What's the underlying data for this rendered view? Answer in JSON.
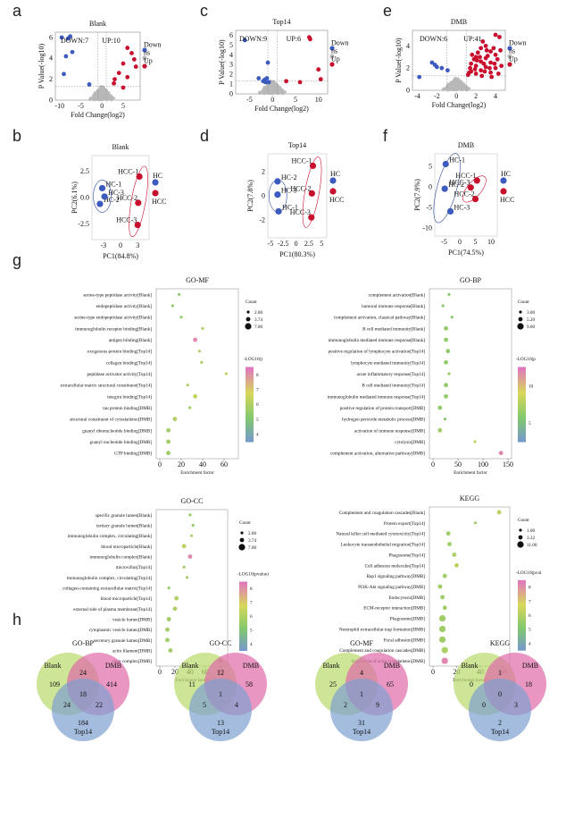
{
  "panels": {
    "a": "a",
    "b": "b",
    "c": "c",
    "d": "d",
    "e": "e",
    "f": "f",
    "g": "g",
    "h": "h"
  },
  "volcano": [
    {
      "title": "Blank",
      "down": "DOWN:7",
      "up": "UP:10",
      "xlabel": "Fold Change(log2)",
      "ylabel": "P Value(-log10)",
      "xticks": [
        "-10",
        "-5",
        "0",
        "5"
      ],
      "yticks": [
        "0",
        "2",
        "4",
        "6"
      ],
      "legend": [
        "Down",
        "ns",
        "Up"
      ]
    },
    {
      "title": "Top14",
      "down": "DOWN:9",
      "up": "UP:6",
      "xlabel": "Fold Change(log2)",
      "ylabel": "P Value(-log10)",
      "xticks": [
        "-5",
        "0",
        "5",
        "10"
      ],
      "yticks": [
        "0",
        "1",
        "2",
        "3",
        "4",
        "5",
        "6"
      ],
      "legend": [
        "Down",
        "ns",
        "Up"
      ]
    },
    {
      "title": "DMB",
      "down": "DOWN:6",
      "up": "UP:41",
      "xlabel": "Fold Change(log2)",
      "ylabel": "P Value(-log10)",
      "xticks": [
        "-4",
        "-2",
        "0",
        "2",
        "4"
      ],
      "yticks": [
        "0",
        "2",
        "4"
      ],
      "legend": [
        "Down",
        "ns",
        "Up"
      ]
    }
  ],
  "pca": [
    {
      "title": "Blank",
      "xlabel": "PC1(84.8%)",
      "ylabel": "PC2(6.1%)",
      "xticks": [
        "-3",
        "0",
        "3"
      ],
      "yticks": [
        "-2.5",
        "0.0",
        "2.5"
      ],
      "legend": [
        "HC",
        "HCC"
      ],
      "hc": [
        {
          "l": "HC-1",
          "x": -3.2,
          "y": 0.9
        },
        {
          "l": "HC-2",
          "x": -3.6,
          "y": -0.6
        },
        {
          "l": "HC-3",
          "x": -2.8,
          "y": 0.1
        }
      ],
      "hcc": [
        {
          "l": "HCC-1",
          "x": 3.3,
          "y": 2.0
        },
        {
          "l": "HCC-2",
          "x": 3.1,
          "y": -0.5
        },
        {
          "l": "HCC-3",
          "x": 3.0,
          "y": -2.6
        }
      ]
    },
    {
      "title": "Top14",
      "xlabel": "PC1(80.3%)",
      "ylabel": "PC2(7.8%)",
      "xticks": [
        "-5",
        "-2.5",
        "0",
        "2.5",
        "5"
      ],
      "yticks": [
        "-2",
        "0",
        "2"
      ],
      "legend": [
        "HC",
        "HCC"
      ],
      "hc": [
        {
          "l": "HC-2",
          "x": -3.6,
          "y": 1.2
        },
        {
          "l": "HC-3",
          "x": -3.6,
          "y": 0.1
        },
        {
          "l": "HC-1",
          "x": -3.4,
          "y": -1.3
        }
      ],
      "hcc": [
        {
          "l": "HCC-1",
          "x": 3.3,
          "y": 2.5
        },
        {
          "l": "HCC-2",
          "x": 3.1,
          "y": 0.2
        },
        {
          "l": "HCC-3",
          "x": 3.0,
          "y": -1.8
        }
      ]
    },
    {
      "title": "DMB",
      "xlabel": "PC1(74.5%)",
      "ylabel": "PC2(7.9%)",
      "xticks": [
        "-5",
        "0",
        "5",
        "10"
      ],
      "yticks": [
        "-10",
        "-5",
        "0",
        "5"
      ],
      "legend": [
        "HC",
        "HCC"
      ],
      "hc": [
        {
          "l": "HC-1",
          "x": -4.5,
          "y": 5.5
        },
        {
          "l": "HC-2",
          "x": -4.8,
          "y": -0.5
        },
        {
          "l": "HC-3",
          "x": -3.0,
          "y": -6
        }
      ],
      "hcc": [
        {
          "l": "HCC-1",
          "x": 5.5,
          "y": 1.5
        },
        {
          "l": "HCC-3",
          "x": 3.5,
          "y": -0.2
        },
        {
          "l": "HCC-2",
          "x": 5,
          "y": -3
        }
      ]
    }
  ],
  "bubbles": [
    {
      "title": "GO-MF",
      "xlabel": "Enrichment factor",
      "xticks": [
        "0",
        "20",
        "40",
        "60"
      ],
      "xmax": 70,
      "sizeTitle": "Count",
      "sizes": [
        "2.00",
        "3.74",
        "7.00"
      ],
      "colorTitle": "-LOG10()",
      "cticks": [
        "4",
        "5",
        "6",
        "7",
        "8"
      ],
      "terms": [
        {
          "t": "serine-type peptidase activity[Blank]",
          "g": "k",
          "x": 18,
          "c": 0.4,
          "s": 1
        },
        {
          "t": "endopeptidase activity[Blank]",
          "g": "k",
          "x": 12,
          "c": 0.4,
          "s": 1
        },
        {
          "t": "serine-type endopeptidase activity[Blank]",
          "g": "k",
          "x": 20,
          "c": 0.4,
          "s": 1
        },
        {
          "t": "immunoglobulin receptor binding[Blank]",
          "g": "k",
          "x": 40,
          "c": 0.5,
          "s": 1
        },
        {
          "t": "antigen binding[Blank]",
          "g": "k",
          "x": 33,
          "c": 0.95,
          "s": 2
        },
        {
          "t": "exogenous protein binding[Top14]",
          "g": "r",
          "x": 37,
          "c": 0.5,
          "s": 1
        },
        {
          "t": "collagen binding[Top14]",
          "g": "r",
          "x": 39,
          "c": 0.5,
          "s": 1
        },
        {
          "t": "peptidase activator activity[Top14]",
          "g": "r",
          "x": 62,
          "c": 0.55,
          "s": 1
        },
        {
          "t": "extracellular matrix structural constituent[Top14]",
          "g": "r",
          "x": 26,
          "c": 0.5,
          "s": 1
        },
        {
          "t": "integrin binding[Top14]",
          "g": "r",
          "x": 33,
          "c": 0.6,
          "s": 2
        },
        {
          "t": "tau protein binding[DMB]",
          "g": "b",
          "x": 28,
          "c": 0.45,
          "s": 1
        },
        {
          "t": "structural constituent of cytoskeleton[DMB]",
          "g": "b",
          "x": 14,
          "c": 0.5,
          "s": 2
        },
        {
          "t": "guanyl ribonucleotide binding[DMB]",
          "g": "b",
          "x": 8,
          "c": 0.45,
          "s": 2
        },
        {
          "t": "guanyl nucleotide binding[DMB]",
          "g": "b",
          "x": 8,
          "c": 0.45,
          "s": 2
        },
        {
          "t": "GTP binding[DMB]",
          "g": "b",
          "x": 8,
          "c": 0.45,
          "s": 2
        }
      ]
    },
    {
      "title": "GO-BP",
      "xlabel": "Enrichment factor",
      "xticks": [
        "0",
        "50",
        "100",
        "150"
      ],
      "xmax": 150,
      "sizeTitle": "Count",
      "sizes": [
        "3.00",
        "5.20",
        "9.00"
      ],
      "colorTitle": "-LOG10(p",
      "cticks": [
        "5",
        "10"
      ],
      "terms": [
        {
          "t": "complement activation[Blank]",
          "g": "k",
          "x": 32,
          "c": 0.35,
          "s": 1
        },
        {
          "t": "humoral immune response[Blank]",
          "g": "k",
          "x": 20,
          "c": 0.35,
          "s": 1
        },
        {
          "t": "complement activation, classical pathway[Blank]",
          "g": "k",
          "x": 38,
          "c": 0.35,
          "s": 1
        },
        {
          "t": "B cell mediated immunity[Blank]",
          "g": "k",
          "x": 26,
          "c": 0.4,
          "s": 2
        },
        {
          "t": "immunoglobulin mediated immune response[Blank]",
          "g": "k",
          "x": 26,
          "c": 0.4,
          "s": 2
        },
        {
          "t": "positive regulation of lymphocyte activation[Top14]",
          "g": "r",
          "x": 30,
          "c": 0.4,
          "s": 2
        },
        {
          "t": "lymphocyte mediated immunity[Top14]",
          "g": "r",
          "x": 26,
          "c": 0.4,
          "s": 2
        },
        {
          "t": "acute inflammatory response[Top14]",
          "g": "r",
          "x": 32,
          "c": 0.4,
          "s": 1
        },
        {
          "t": "B cell mediated immunity[Top14]",
          "g": "r",
          "x": 26,
          "c": 0.4,
          "s": 2
        },
        {
          "t": "immunoglobulin mediated immune response[Top14]",
          "g": "r",
          "x": 26,
          "c": 0.4,
          "s": 2
        },
        {
          "t": "positive regulation of protein transport[DMB]",
          "g": "b",
          "x": 14,
          "c": 0.4,
          "s": 2
        },
        {
          "t": "hydrogen peroxide metabolic process[DMB]",
          "g": "b",
          "x": 24,
          "c": 0.35,
          "s": 1
        },
        {
          "t": "activation of immune response[DMB]",
          "g": "b",
          "x": 14,
          "c": 0.45,
          "s": 2
        },
        {
          "t": "cytolysis[DMB]",
          "g": "b",
          "x": 84,
          "c": 0.55,
          "s": 1
        },
        {
          "t": "complement activation, alternative pathway[DMB]",
          "g": "b",
          "x": 136,
          "c": 0.95,
          "s": 2
        }
      ]
    },
    {
      "title": "GO-CC",
      "xlabel": "Enrichment factor",
      "xticks": [
        "0",
        "20",
        "40",
        "60",
        "80"
      ],
      "xmax": 85,
      "sizeTitle": "Count",
      "sizes": [
        "2.00",
        "3.74",
        "7.00"
      ],
      "colorTitle": "-LOG10(pvalue)",
      "cticks": [
        "4",
        "5",
        "6",
        "7",
        "8"
      ],
      "terms": [
        {
          "t": "specific granule lumen[Blank]",
          "g": "k",
          "x": 40,
          "c": 0.4,
          "s": 1
        },
        {
          "t": "tertiary granule lumen[Blank]",
          "g": "k",
          "x": 44,
          "c": 0.4,
          "s": 1
        },
        {
          "t": "immunoglobulin complex, circulating[Blank]",
          "g": "k",
          "x": 42,
          "c": 0.5,
          "s": 1
        },
        {
          "t": "blood microparticle[Blank]",
          "g": "k",
          "x": 32,
          "c": 0.55,
          "s": 2
        },
        {
          "t": "immunoglobulin complex[Blank]",
          "g": "k",
          "x": 40,
          "c": 0.95,
          "s": 2
        },
        {
          "t": "microvillus[Top14]",
          "g": "r",
          "x": 32,
          "c": 0.45,
          "s": 1
        },
        {
          "t": "immunoglobulin complex, circulating[Top14]",
          "g": "r",
          "x": 36,
          "c": 0.5,
          "s": 1
        },
        {
          "t": "collagen-containing extracellular matrix[Top14]",
          "g": "r",
          "x": 12,
          "c": 0.4,
          "s": 1
        },
        {
          "t": "blood microparticle[Top14]",
          "g": "r",
          "x": 22,
          "c": 0.5,
          "s": 2
        },
        {
          "t": "external side of plasma membrane[Top14]",
          "g": "r",
          "x": 20,
          "c": 0.5,
          "s": 2
        },
        {
          "t": "vesicle lumen[DMB]",
          "g": "b",
          "x": 12,
          "c": 0.45,
          "s": 2
        },
        {
          "t": "cytoplasmic vesicle lumen[DMB]",
          "g": "b",
          "x": 10,
          "c": 0.45,
          "s": 2
        },
        {
          "t": "secretory granule lumen[DMB]",
          "g": "b",
          "x": 10,
          "c": 0.45,
          "s": 2
        },
        {
          "t": "actin filament[DMB]",
          "g": "b",
          "x": 14,
          "c": 0.45,
          "s": 2
        },
        {
          "t": "pore complex[DMB]",
          "g": "b",
          "x": 80,
          "c": 0.9,
          "s": 2
        }
      ]
    },
    {
      "title": "KEGG",
      "xlabel": "Enrichment factor",
      "xticks": [
        "0",
        "20",
        "40",
        "60"
      ],
      "xmax": 62,
      "sizeTitle": "Count",
      "sizes": [
        "1.00",
        "3.32",
        "11.00"
      ],
      "colorTitle": "-LOG10(pval",
      "cticks": [
        "4",
        "5",
        "6",
        "7",
        "8"
      ],
      "terms": [
        {
          "t": "Complement and coagulation cascades[Blank]",
          "g": "k",
          "x": 56,
          "c": 0.55,
          "s": 2
        },
        {
          "t": "Protein export[Top14]",
          "g": "r",
          "x": 36,
          "c": 0.45,
          "s": 1
        },
        {
          "t": "Natural killer cell mediated cytotoxicity[Top14]",
          "g": "r",
          "x": 13,
          "c": 0.45,
          "s": 2
        },
        {
          "t": "Leukocyte transendothelial migration[Top14]",
          "g": "r",
          "x": 14,
          "c": 0.45,
          "s": 2
        },
        {
          "t": "Phagosome[Top14]",
          "g": "r",
          "x": 18,
          "c": 0.5,
          "s": 2
        },
        {
          "t": "Cell adhesion molecules[Top14]",
          "g": "r",
          "x": 20,
          "c": 0.55,
          "s": 2
        },
        {
          "t": "Rap1 signaling pathway[DMB]",
          "g": "b",
          "x": 10,
          "c": 0.45,
          "s": 2
        },
        {
          "t": "PI3K-Akt signaling pathway[DMB]",
          "g": "b",
          "x": 6,
          "c": 0.45,
          "s": 2
        },
        {
          "t": "Endocytosis[DMB]",
          "g": "b",
          "x": 8,
          "c": 0.45,
          "s": 2
        },
        {
          "t": "ECM-receptor interaction[DMB]",
          "g": "b",
          "x": 10,
          "c": 0.45,
          "s": 2
        },
        {
          "t": "Phagosome[DMB]",
          "g": "b",
          "x": 8,
          "c": 0.45,
          "s": 3
        },
        {
          "t": "Neutrophil extracellular trap formation[DMB]",
          "g": "b",
          "x": 8,
          "c": 0.45,
          "s": 3
        },
        {
          "t": "Focal adhesion[DMB]",
          "g": "b",
          "x": 8,
          "c": 0.45,
          "s": 3
        },
        {
          "t": "Complement and coagulation cascades[DMB]",
          "g": "b",
          "x": 10,
          "c": 0.5,
          "s": 3
        },
        {
          "t": "Regulation of actin cytoskeleton[DMB]",
          "g": "b",
          "x": 10,
          "c": 0.95,
          "s": 3
        }
      ]
    }
  ],
  "venns": [
    {
      "title": "GO-BP",
      "labels": [
        "Blank",
        "DMB",
        "Top14"
      ],
      "n": [
        "109",
        "24",
        "414",
        "24",
        "18",
        "22",
        "184"
      ]
    },
    {
      "title": "GO-CC",
      "labels": [
        "Blank",
        "DMB",
        "Top14"
      ],
      "n": [
        "11",
        "12",
        "58",
        "5",
        "1",
        "4",
        "13"
      ]
    },
    {
      "title": "GO-MF",
      "labels": [
        "Blank",
        "DMB",
        "Top14"
      ],
      "n": [
        "25",
        "4",
        "65",
        "2",
        "1",
        "9",
        "31"
      ]
    },
    {
      "title": "KEGG",
      "labels": [
        "Blank",
        "DMB",
        "Top14"
      ],
      "n": [
        "0",
        "1",
        "18",
        "0",
        "0",
        "3",
        "2"
      ]
    }
  ],
  "colors": {
    "down": "#3b5bbf",
    "up": "#c8102e",
    "ns": "#b8b8b8",
    "blankVenn": "#b9d86a",
    "dmbVenn": "#e06aa8",
    "topVenn": "#7d9fd0"
  }
}
